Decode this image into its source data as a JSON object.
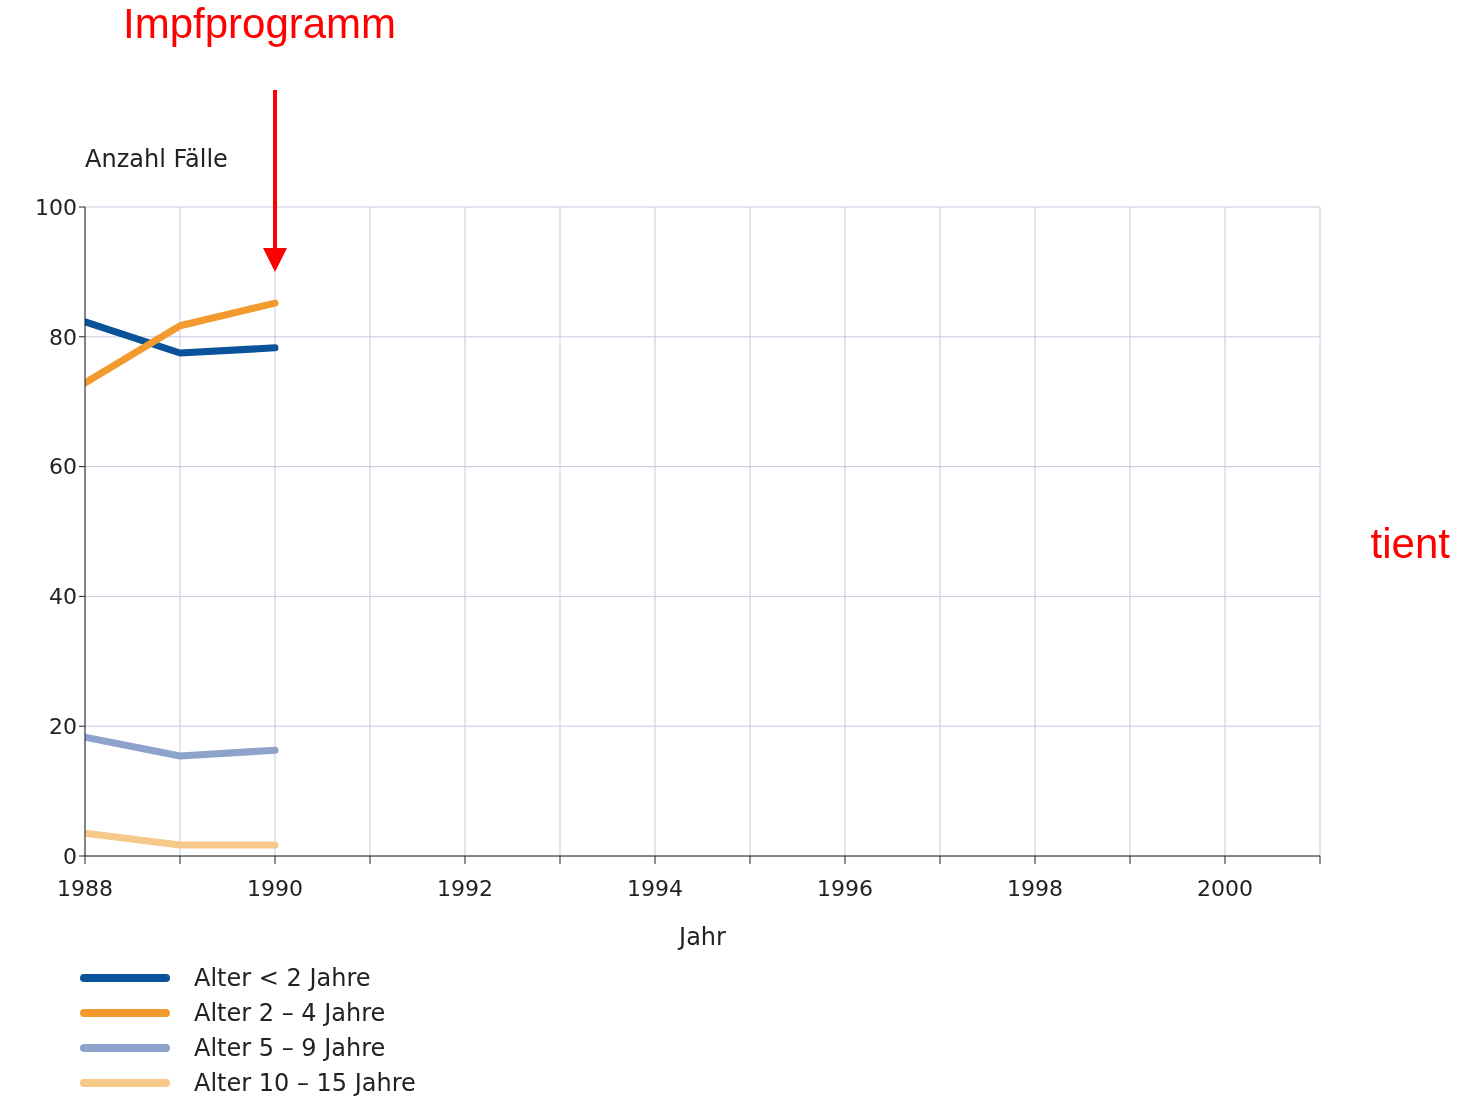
{
  "chart_data": {
    "type": "line",
    "xlabel": "Jahr",
    "ylabel": "Anzahl Fälle",
    "x": [
      1988,
      1989,
      1990
    ],
    "series": [
      {
        "name": "Alter < 2 Jahre",
        "color": "#0a539a",
        "values": [
          82.3,
          77.5,
          78.3
        ]
      },
      {
        "name": "Alter 2 – 4 Jahre",
        "color": "#f29a2e",
        "values": [
          72.9,
          81.7,
          85.2
        ]
      },
      {
        "name": "Alter 5 – 9 Jahre",
        "color": "#8ea3cc",
        "values": [
          18.3,
          15.4,
          16.3
        ]
      },
      {
        "name": "Alter 10 – 15 Jahre",
        "color": "#f6c88a",
        "values": [
          3.5,
          1.7,
          1.7
        ]
      }
    ],
    "xlim": [
      1988,
      2001
    ],
    "xticks": [
      1988,
      {
        "value": 1989,
        "label": null
      },
      1990,
      {
        "value": 1991,
        "label": null
      },
      1992,
      {
        "value": 1993,
        "label": null
      },
      1994,
      {
        "value": 1995,
        "label": null
      },
      1996,
      {
        "value": 1997,
        "label": null
      },
      1998,
      {
        "value": 1999,
        "label": null
      },
      2000,
      {
        "value": 2001,
        "label": null
      }
    ],
    "ylim": [
      0,
      100
    ],
    "yticks": [
      0,
      20,
      40,
      60,
      80,
      100
    ],
    "grid": true,
    "legend": "bottom left",
    "marker": "none",
    "line_style": "solid",
    "annotations": [
      "Impfprogramm",
      "tient"
    ]
  }
}
